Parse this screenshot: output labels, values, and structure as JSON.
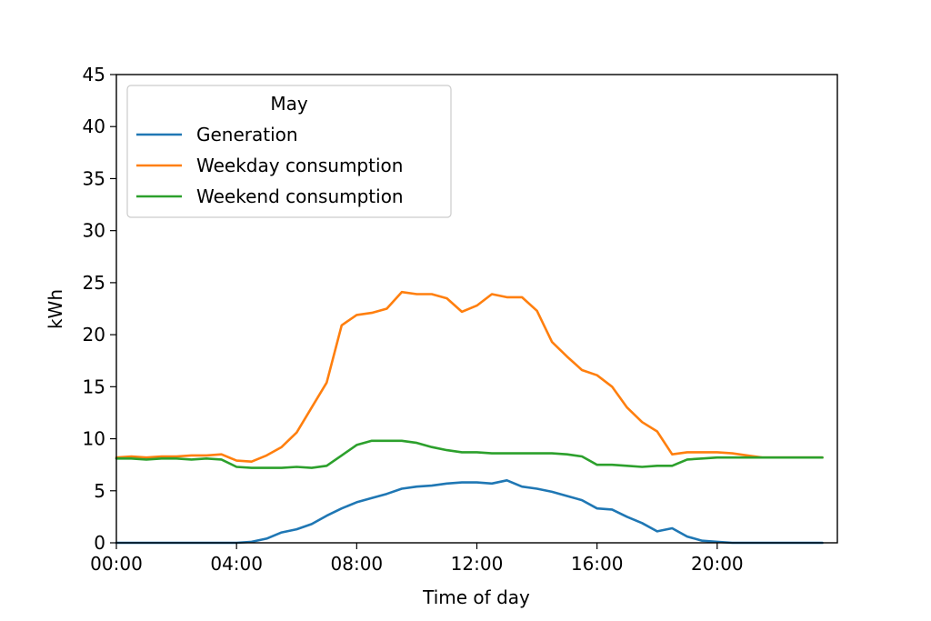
{
  "chart_data": {
    "type": "line",
    "title": "",
    "xlabel": "Time of day",
    "ylabel": "kWh",
    "xlim": [
      0,
      24
    ],
    "ylim": [
      0,
      45
    ],
    "grid": false,
    "legend": {
      "title": "May",
      "placement": "top-left"
    },
    "x_tick_labels": [
      "00:00",
      "04:00",
      "08:00",
      "12:00",
      "16:00",
      "20:00"
    ],
    "x_tick_values": [
      0,
      4,
      8,
      12,
      16,
      20
    ],
    "y_tick_values": [
      0,
      5,
      10,
      15,
      20,
      25,
      30,
      35,
      40,
      45
    ],
    "x": [
      0,
      0.5,
      1,
      1.5,
      2,
      2.5,
      3,
      3.5,
      4,
      4.5,
      5,
      5.5,
      6,
      6.5,
      7,
      7.5,
      8,
      8.5,
      9,
      9.5,
      10,
      10.5,
      11,
      11.5,
      12,
      12.5,
      13,
      13.5,
      14,
      14.5,
      15,
      15.5,
      16,
      16.5,
      17,
      17.5,
      18,
      18.5,
      19,
      19.5,
      20,
      20.5,
      21,
      21.5,
      22,
      22.5,
      23,
      23.5
    ],
    "series": [
      {
        "name": "Generation",
        "color": "#1f77b4",
        "values": [
          0,
          0,
          0,
          0,
          0,
          0,
          0,
          0,
          0,
          0.1,
          0.4,
          1.0,
          1.3,
          1.8,
          2.6,
          3.3,
          3.9,
          4.3,
          4.7,
          5.2,
          5.4,
          5.5,
          5.7,
          5.8,
          5.8,
          5.7,
          6.0,
          5.4,
          5.2,
          4.9,
          4.5,
          4.1,
          3.3,
          3.2,
          2.5,
          1.9,
          1.1,
          1.4,
          0.6,
          0.2,
          0.1,
          0,
          0,
          0,
          0,
          0,
          0,
          0
        ]
      },
      {
        "name": "Weekday consumption",
        "color": "#ff7f0e",
        "values": [
          8.2,
          8.3,
          8.2,
          8.3,
          8.3,
          8.4,
          8.4,
          8.5,
          7.9,
          7.8,
          8.4,
          9.2,
          10.6,
          13.0,
          15.4,
          20.9,
          21.9,
          22.1,
          22.5,
          24.1,
          23.9,
          23.9,
          23.5,
          22.2,
          22.8,
          23.9,
          23.6,
          23.6,
          22.3,
          19.3,
          17.9,
          16.6,
          16.1,
          15.0,
          13.0,
          11.6,
          10.7,
          8.5,
          8.7,
          8.7,
          8.7,
          8.6,
          8.4,
          8.2,
          8.2,
          8.2,
          8.2,
          8.2
        ]
      },
      {
        "name": "Weekend consumption",
        "color": "#2ca02c",
        "values": [
          8.1,
          8.1,
          8.0,
          8.1,
          8.1,
          8.0,
          8.1,
          8.0,
          7.3,
          7.2,
          7.2,
          7.2,
          7.3,
          7.2,
          7.4,
          8.4,
          9.4,
          9.8,
          9.8,
          9.8,
          9.6,
          9.2,
          8.9,
          8.7,
          8.7,
          8.6,
          8.6,
          8.6,
          8.6,
          8.6,
          8.5,
          8.3,
          7.5,
          7.5,
          7.4,
          7.3,
          7.4,
          7.4,
          8.0,
          8.1,
          8.2,
          8.2,
          8.2,
          8.2,
          8.2,
          8.2,
          8.2,
          8.2
        ]
      }
    ]
  }
}
